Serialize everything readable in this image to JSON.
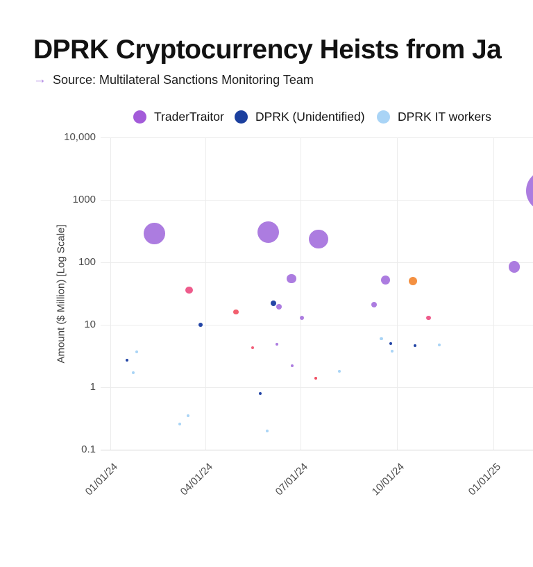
{
  "header": {
    "title": "DPRK Cryptocurrency Heists from Ja",
    "source_arrow": "→",
    "source_text": "Source: Multilateral Sanctions Monitoring Team"
  },
  "chart_data": {
    "type": "scatter",
    "subtype": "bubble-timeline",
    "title": "DPRK Cryptocurrency Heists from Ja",
    "xlabel": "",
    "ylabel": "Amount ($ Million) [Log Scale]",
    "y_scale": "log",
    "ylim": [
      0.1,
      10000
    ],
    "grid": true,
    "legend_position": "top-center",
    "size_scale": "bubble radius proportional to sqrt(value)",
    "y_ticks": [
      {
        "label": "10,000",
        "value": 10000
      },
      {
        "label": "1000",
        "value": 1000
      },
      {
        "label": "100",
        "value": 100
      },
      {
        "label": "10",
        "value": 10
      },
      {
        "label": "1",
        "value": 1
      },
      {
        "label": "0.1",
        "value": 0.1
      }
    ],
    "x_ticks": [
      {
        "label": "01/01/24",
        "date": "2024-01-01"
      },
      {
        "label": "04/01/24",
        "date": "2024-04-01"
      },
      {
        "label": "07/01/24",
        "date": "2024-07-01"
      },
      {
        "label": "10/01/24",
        "date": "2024-10-01"
      },
      {
        "label": "01/01/25",
        "date": "2025-01-01"
      }
    ],
    "series": [
      {
        "name": "TraderTraitor",
        "color": "#A35BD9",
        "bubble_color": "#AC7CE0",
        "in_legend": true,
        "points": [
          {
            "date": "2024-02-12",
            "value": 290
          },
          {
            "date": "2024-05-31",
            "value": 305
          },
          {
            "date": "2024-07-18",
            "value": 235
          },
          {
            "date": "2024-06-22",
            "value": 55
          },
          {
            "date": "2024-09-20",
            "value": 52
          },
          {
            "date": "2024-09-09",
            "value": 21
          },
          {
            "date": "2024-06-10",
            "value": 19.5
          },
          {
            "date": "2024-07-02",
            "value": 13
          },
          {
            "date": "2024-06-08",
            "value": 4.9
          },
          {
            "date": "2024-06-23",
            "value": 2.2
          },
          {
            "date": "2025-01-21",
            "value": 85
          },
          {
            "date": "2025-02-21",
            "value": 1400
          }
        ]
      },
      {
        "name": "DPRK (Unidentified)",
        "color": "#1B3F9E",
        "bubble_color": "#2446A6",
        "in_legend": true,
        "points": [
          {
            "date": "2024-03-27",
            "value": 10
          },
          {
            "date": "2024-06-05",
            "value": 22
          },
          {
            "date": "2024-01-17",
            "value": 2.7
          },
          {
            "date": "2024-05-23",
            "value": 0.8
          },
          {
            "date": "2024-09-25",
            "value": 5
          },
          {
            "date": "2024-10-18",
            "value": 4.7
          }
        ]
      },
      {
        "name": "DPRK IT workers",
        "color": "#A9D4F6",
        "bubble_color": "#A9D4F6",
        "in_legend": true,
        "points": [
          {
            "date": "2024-01-26",
            "value": 3.7
          },
          {
            "date": "2024-01-23",
            "value": 1.7
          },
          {
            "date": "2024-03-15",
            "value": 0.35
          },
          {
            "date": "2024-03-07",
            "value": 0.26
          },
          {
            "date": "2024-05-30",
            "value": 0.2
          },
          {
            "date": "2024-09-16",
            "value": 6
          },
          {
            "date": "2024-09-26",
            "value": 3.8
          },
          {
            "date": "2024-11-10",
            "value": 4.8
          },
          {
            "date": "2024-08-07",
            "value": 1.8
          }
        ]
      },
      {
        "name": "",
        "color": "#EE5C8C",
        "bubble_color": "#EE5C8C",
        "in_legend": false,
        "points": [
          {
            "date": "2024-03-16",
            "value": 36
          },
          {
            "date": "2024-04-30",
            "value": 16,
            "color": "#F25F6E"
          },
          {
            "date": "2024-05-16",
            "value": 4.3,
            "color": "#F2607A"
          },
          {
            "date": "2024-07-15",
            "value": 1.4,
            "color": "#F04E62"
          },
          {
            "date": "2024-10-31",
            "value": 13
          }
        ]
      },
      {
        "name": "",
        "color": "#F49041",
        "bubble_color": "#F49041",
        "in_legend": false,
        "points": [
          {
            "date": "2024-10-16",
            "value": 50
          }
        ]
      }
    ]
  }
}
